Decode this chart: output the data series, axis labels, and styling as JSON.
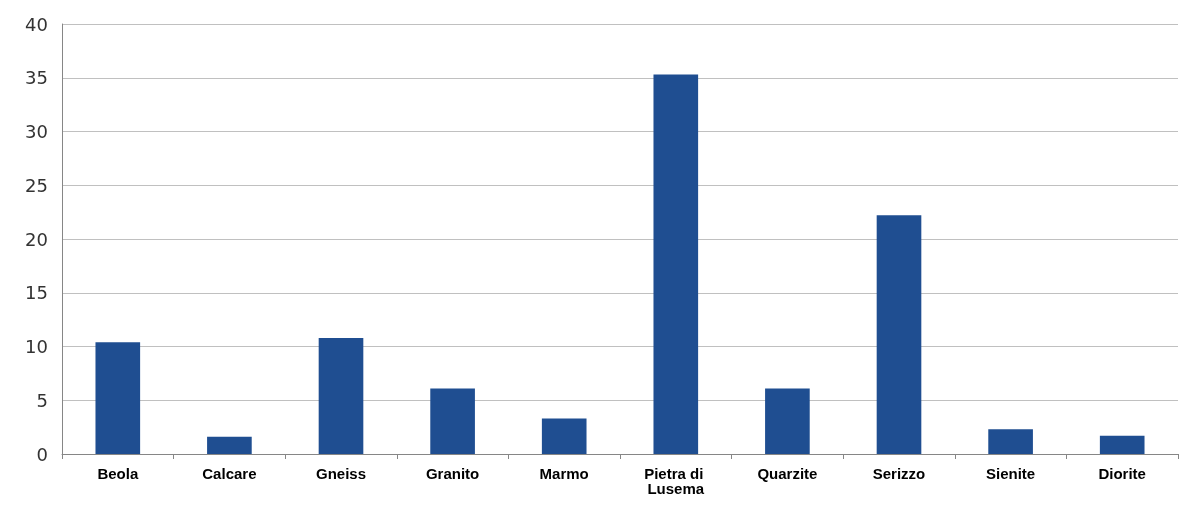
{
  "chart_data": {
    "type": "bar",
    "categories": [
      "Beola",
      "Calcare",
      "Gneiss",
      "Granito",
      "Marmo",
      "Pietra di Lusema",
      "Quarzite",
      "Serizzo",
      "Sienite",
      "Diorite"
    ],
    "values": [
      10.4,
      1.6,
      10.8,
      6.1,
      3.3,
      35.3,
      6.1,
      22.2,
      2.3,
      1.7
    ],
    "color": "#1f4e91",
    "ylim": [
      0,
      40
    ],
    "yticks": [
      0,
      5,
      10,
      15,
      20,
      25,
      30,
      35,
      40
    ],
    "grid": "y"
  }
}
